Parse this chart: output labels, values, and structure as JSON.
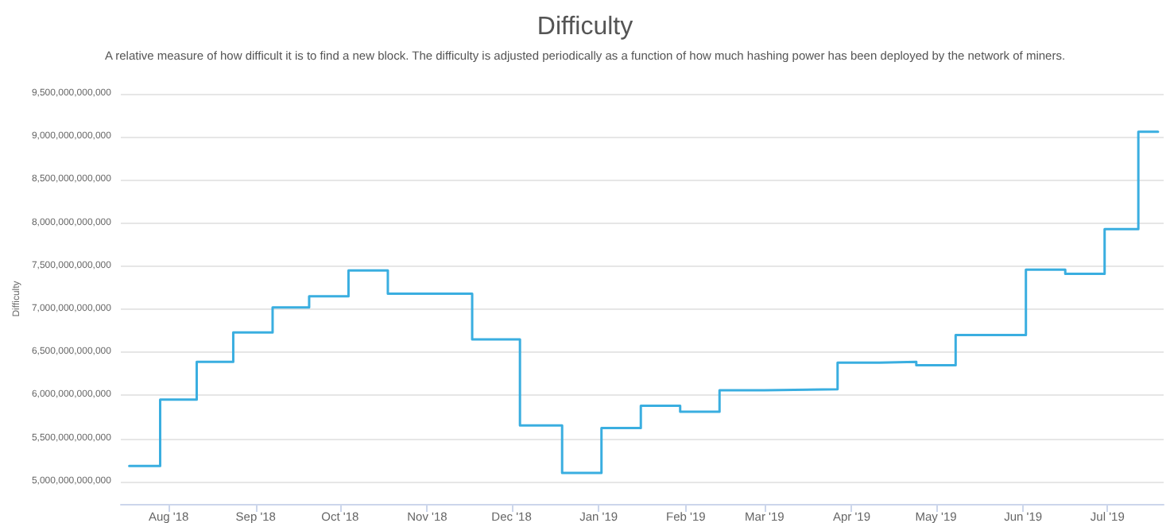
{
  "chart_data": {
    "type": "step",
    "title": "Difficulty",
    "subtitle": "A relative measure of how difficult it is to find a new block. The difficulty is adjusted periodically as a function of how much hashing power has been deployed by the network of miners.",
    "ylabel": "Difficulty",
    "x": [
      "2018-07-18",
      "2018-07-29",
      "2018-08-11",
      "2018-08-24",
      "2018-09-07",
      "2018-09-20",
      "2018-10-04",
      "2018-10-18",
      "2018-11-17",
      "2018-12-04",
      "2018-12-19",
      "2019-01-02",
      "2019-01-16",
      "2019-01-30",
      "2019-02-13",
      "2019-03-01",
      "2019-03-27",
      "2019-04-11",
      "2019-04-24",
      "2019-05-08",
      "2019-06-02",
      "2019-06-16",
      "2019-06-30",
      "2019-07-12",
      "2019-07-19"
    ],
    "series": [
      {
        "color": "#3aaee0",
        "values": [
          5180000000000,
          5950000000000,
          6390000000000,
          6730000000000,
          7020000000000,
          7150000000000,
          7450000000000,
          7180000000000,
          6650000000000,
          5650000000000,
          5100000000000,
          5620000000000,
          5880000000000,
          5810000000000,
          6060000000000,
          6070000000000,
          6380000000000,
          6390000000000,
          6350000000000,
          6700000000000,
          7460000000000,
          7410000000000,
          7930000000000,
          9060000000000,
          9060000000000
        ]
      }
    ],
    "xlim": [
      "2018-07-15",
      "2019-07-21"
    ],
    "xticks": [
      {
        "value": "2018-08-01",
        "label": "Aug '18"
      },
      {
        "value": "2018-09-01",
        "label": "Sep '18"
      },
      {
        "value": "2018-10-01",
        "label": "Oct '18"
      },
      {
        "value": "2018-11-01",
        "label": "Nov '18"
      },
      {
        "value": "2018-12-01",
        "label": "Dec '18"
      },
      {
        "value": "2019-01-01",
        "label": "Jan '19"
      },
      {
        "value": "2019-02-01",
        "label": "Feb '19"
      },
      {
        "value": "2019-03-01",
        "label": "Mar '19"
      },
      {
        "value": "2019-04-01",
        "label": "Apr '19"
      },
      {
        "value": "2019-05-01",
        "label": "May '19"
      },
      {
        "value": "2019-06-01",
        "label": "Jun '19"
      },
      {
        "value": "2019-07-01",
        "label": "Jul '19"
      }
    ],
    "ylim": [
      4740000000000,
      9500000000000
    ],
    "yticks": [
      {
        "value": 5000000000000,
        "label": "5,000,000,000,000"
      },
      {
        "value": 5500000000000,
        "label": "5,500,000,000,000"
      },
      {
        "value": 6000000000000,
        "label": "6,000,000,000,000"
      },
      {
        "value": 6500000000000,
        "label": "6,500,000,000,000"
      },
      {
        "value": 7000000000000,
        "label": "7,000,000,000,000"
      },
      {
        "value": 7500000000000,
        "label": "7,500,000,000,000"
      },
      {
        "value": 8000000000000,
        "label": "8,000,000,000,000"
      },
      {
        "value": 8500000000000,
        "label": "8,500,000,000,000"
      },
      {
        "value": 9000000000000,
        "label": "9,000,000,000,000"
      },
      {
        "value": 9500000000000,
        "label": "9,500,000,000,000"
      }
    ],
    "grid": "y",
    "marker": "none",
    "line_style": "solid"
  }
}
